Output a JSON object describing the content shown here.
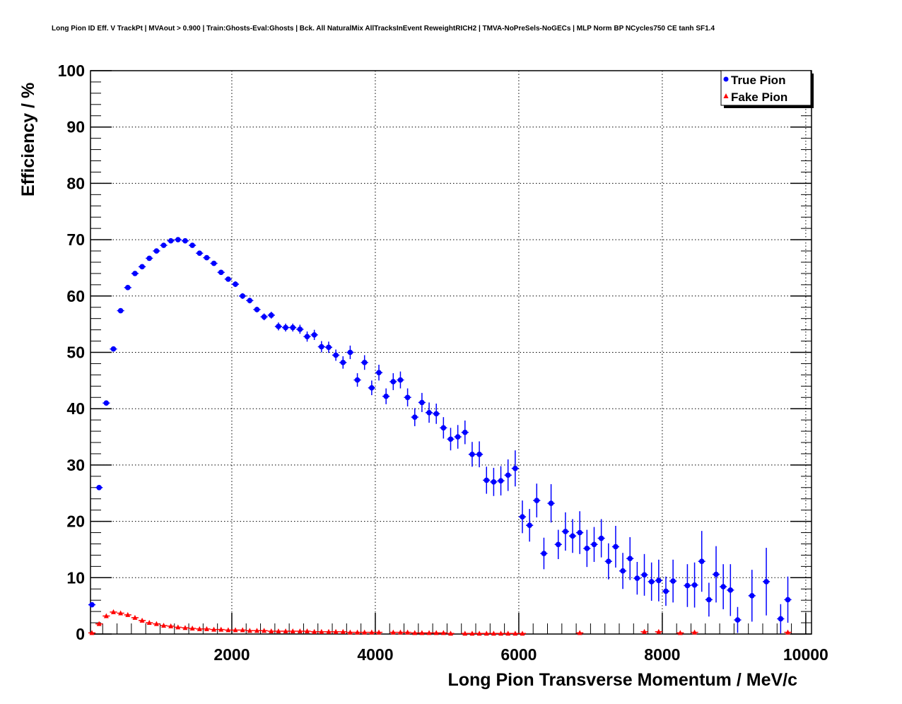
{
  "chart_data": {
    "type": "scatter",
    "title": "Long Pion ID Eff. V TrackPt | MVAout > 0.900 | Train:Ghosts-Eval:Ghosts | Bck. All NaturalMix AllTracksInEvent ReweightRICH2 | TMVA-NoPreSels-NoGECs | MLP Norm BP NCycles750 CE tanh SF1.4",
    "xlabel": "Long Pion Transverse Momentum / MeV/c",
    "ylabel": "Efficiency / %",
    "xlim": [
      30,
      10080
    ],
    "ylim": [
      0,
      100
    ],
    "grid": true,
    "legend_position": "top-right",
    "x_ticks": [
      "2000",
      "4000",
      "6000",
      "8000",
      "10000"
    ],
    "x_tick_values": [
      2000,
      4000,
      6000,
      8000,
      10000
    ],
    "y_ticks": [
      "0",
      "10",
      "20",
      "30",
      "40",
      "50",
      "60",
      "70",
      "80",
      "90",
      "100"
    ],
    "y_tick_values": [
      0,
      10,
      20,
      30,
      40,
      50,
      60,
      70,
      80,
      90,
      100
    ],
    "bin_start": 50,
    "bin_width": 100,
    "series": [
      {
        "name": "True Pion",
        "color": "#0000ff",
        "marker": "circle",
        "values": [
          5.2,
          26,
          41,
          50.6,
          57.4,
          61.5,
          64,
          65.2,
          66.7,
          68,
          69,
          69.8,
          70,
          69.8,
          69,
          67.6,
          66.8,
          65.8,
          64.2,
          63,
          62.1,
          60,
          59.2,
          57.6,
          56.3,
          56.6,
          54.6,
          54.4,
          54.4,
          54.1,
          52.8,
          53.1,
          51,
          50.9,
          49.5,
          48.2,
          50,
          45.1,
          48.2,
          43.7,
          46.4,
          42.2,
          44.8,
          45.1,
          42,
          38.5,
          41.1,
          39.3,
          39.1,
          36.6,
          34.6,
          35,
          35.8,
          31.9,
          31.9,
          27.3,
          27,
          27.2,
          28.2,
          29.4,
          20.8,
          19.3,
          23.7,
          14.3,
          23.2,
          15.9,
          18.2,
          17.4,
          18,
          15.2,
          15.9,
          17,
          12.9,
          15.5,
          11.2,
          13.4,
          9.9,
          10.5,
          9.3,
          9.5,
          7.6,
          9.4,
          null,
          8.6,
          8.7,
          12.9,
          6.1,
          10.6,
          8.4,
          7.8,
          2.5,
          null,
          6.8,
          null,
          9.3,
          null,
          2.7,
          6.1
        ],
        "errors": [
          0.3,
          0.3,
          0.3,
          0.3,
          0.3,
          0.3,
          0.3,
          0.3,
          0.3,
          0.3,
          0.3,
          0.3,
          0.3,
          0.3,
          0.3,
          0.3,
          0.4,
          0.4,
          0.4,
          0.4,
          0.5,
          0.5,
          0.5,
          0.5,
          0.6,
          0.6,
          0.7,
          0.7,
          0.7,
          0.8,
          0.9,
          0.9,
          1.0,
          1.0,
          1.0,
          1.1,
          1.2,
          1.2,
          1.3,
          1.3,
          1.4,
          1.4,
          1.5,
          1.5,
          1.6,
          1.6,
          1.7,
          1.8,
          1.8,
          1.9,
          2.0,
          2.1,
          2.1,
          2.2,
          2.3,
          2.4,
          2.5,
          2.6,
          2.8,
          3.2,
          2.9,
          2.9,
          3.0,
          2.8,
          3.4,
          2.6,
          3.4,
          3.0,
          3.8,
          3.3,
          3.1,
          3.4,
          3.2,
          3.7,
          3.2,
          3.8,
          2.9,
          3.7,
          3.4,
          3.7,
          2.6,
          3.8,
          null,
          3.8,
          4.0,
          5.4,
          3.0,
          5.0,
          4.0,
          4.6,
          2.3,
          null,
          4.6,
          null,
          6.0,
          null,
          2.6,
          4.1
        ]
      },
      {
        "name": "Fake Pion",
        "color": "#ff0000",
        "marker": "triangle",
        "values": [
          0.2,
          1.8,
          3.2,
          3.9,
          3.7,
          3.4,
          2.9,
          2.4,
          2.0,
          1.8,
          1.5,
          1.4,
          1.2,
          1.1,
          1.0,
          0.9,
          0.9,
          0.8,
          0.8,
          0.7,
          0.7,
          0.7,
          0.6,
          0.6,
          0.6,
          0.5,
          0.5,
          0.5,
          0.5,
          0.5,
          0.5,
          0.4,
          0.4,
          0.4,
          0.4,
          0.4,
          0.3,
          0.3,
          0.3,
          0.3,
          0.3,
          null,
          0.3,
          0.3,
          0.3,
          0.2,
          0.2,
          0.2,
          0.2,
          0.2,
          0.1,
          null,
          0.1,
          0.1,
          0.1,
          0.1,
          0.1,
          0.1,
          0.1,
          0.1,
          0.1,
          null,
          null,
          null,
          null,
          null,
          null,
          null,
          0.2,
          null,
          null,
          null,
          null,
          null,
          null,
          null,
          null,
          0.4,
          null,
          0.4,
          null,
          null,
          0.2,
          null,
          0.3,
          null,
          null,
          null,
          null,
          null,
          null,
          null,
          null,
          null,
          null,
          null,
          null,
          0.3
        ]
      }
    ]
  }
}
